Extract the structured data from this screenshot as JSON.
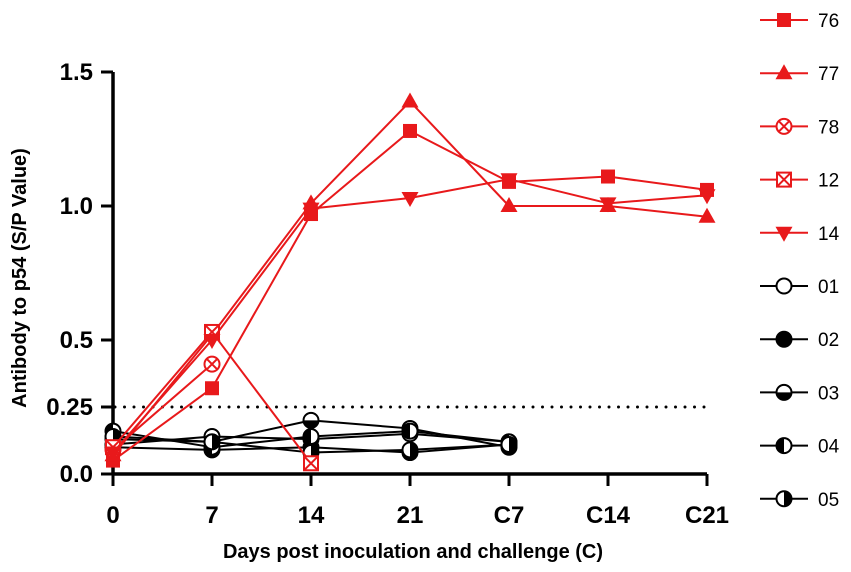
{
  "chart_data": {
    "type": "line",
    "title": "",
    "xlabel": "Days post inoculation and challenge (C)",
    "ylabel": "Antibody to p54 (S/P Value)",
    "categories": [
      "0",
      "7",
      "14",
      "21",
      "C7",
      "C14",
      "C21"
    ],
    "y_ticks": [
      {
        "value": 0.0,
        "label": "0.0"
      },
      {
        "value": 0.25,
        "label": "0.25"
      },
      {
        "value": 0.5,
        "label": "0.5"
      },
      {
        "value": 1.0,
        "label": "1.0"
      },
      {
        "value": 1.5,
        "label": "1.5"
      }
    ],
    "ylim": [
      0,
      1.5
    ],
    "threshold": {
      "value": 0.25,
      "style": "dotted"
    },
    "colors": {
      "infected": "#e8191b",
      "control": "#000000"
    },
    "series": [
      {
        "name": "76",
        "group": "infected",
        "marker": "square-filled",
        "values": [
          0.05,
          0.32,
          0.97,
          1.28,
          1.09,
          1.11,
          1.06
        ]
      },
      {
        "name": "77",
        "group": "infected",
        "marker": "triangle-up-filled",
        "values": [
          0.07,
          0.52,
          1.01,
          1.39,
          1.0,
          1.0,
          0.96
        ]
      },
      {
        "name": "78",
        "group": "infected",
        "marker": "circle-cross-open",
        "values": [
          0.09,
          0.41,
          null,
          null,
          null,
          null,
          null
        ]
      },
      {
        "name": "12",
        "group": "infected",
        "marker": "square-cross-open",
        "values": [
          0.1,
          0.53,
          0.04,
          null,
          null,
          null,
          null
        ]
      },
      {
        "name": "14",
        "group": "infected",
        "marker": "triangle-down-filled",
        "values": [
          0.08,
          0.5,
          0.99,
          1.03,
          1.1,
          1.01,
          1.04
        ]
      },
      {
        "name": "01",
        "group": "control",
        "marker": "circle-open",
        "values": [
          0.11,
          0.14,
          0.13,
          0.15,
          0.12,
          null,
          null
        ]
      },
      {
        "name": "02",
        "group": "control",
        "marker": "circle-filled",
        "values": [
          0.1,
          0.09,
          0.1,
          0.08,
          0.11,
          null,
          null
        ]
      },
      {
        "name": "03",
        "group": "control",
        "marker": "circle-bottom-half",
        "values": [
          0.13,
          0.12,
          0.2,
          0.17,
          0.1,
          null,
          null
        ]
      },
      {
        "name": "04",
        "group": "control",
        "marker": "circle-left-half",
        "values": [
          0.16,
          0.1,
          0.14,
          0.16,
          0.12,
          null,
          null
        ]
      },
      {
        "name": "05",
        "group": "control",
        "marker": "circle-right-half",
        "values": [
          0.14,
          0.12,
          0.08,
          0.09,
          0.11,
          null,
          null
        ]
      }
    ]
  }
}
